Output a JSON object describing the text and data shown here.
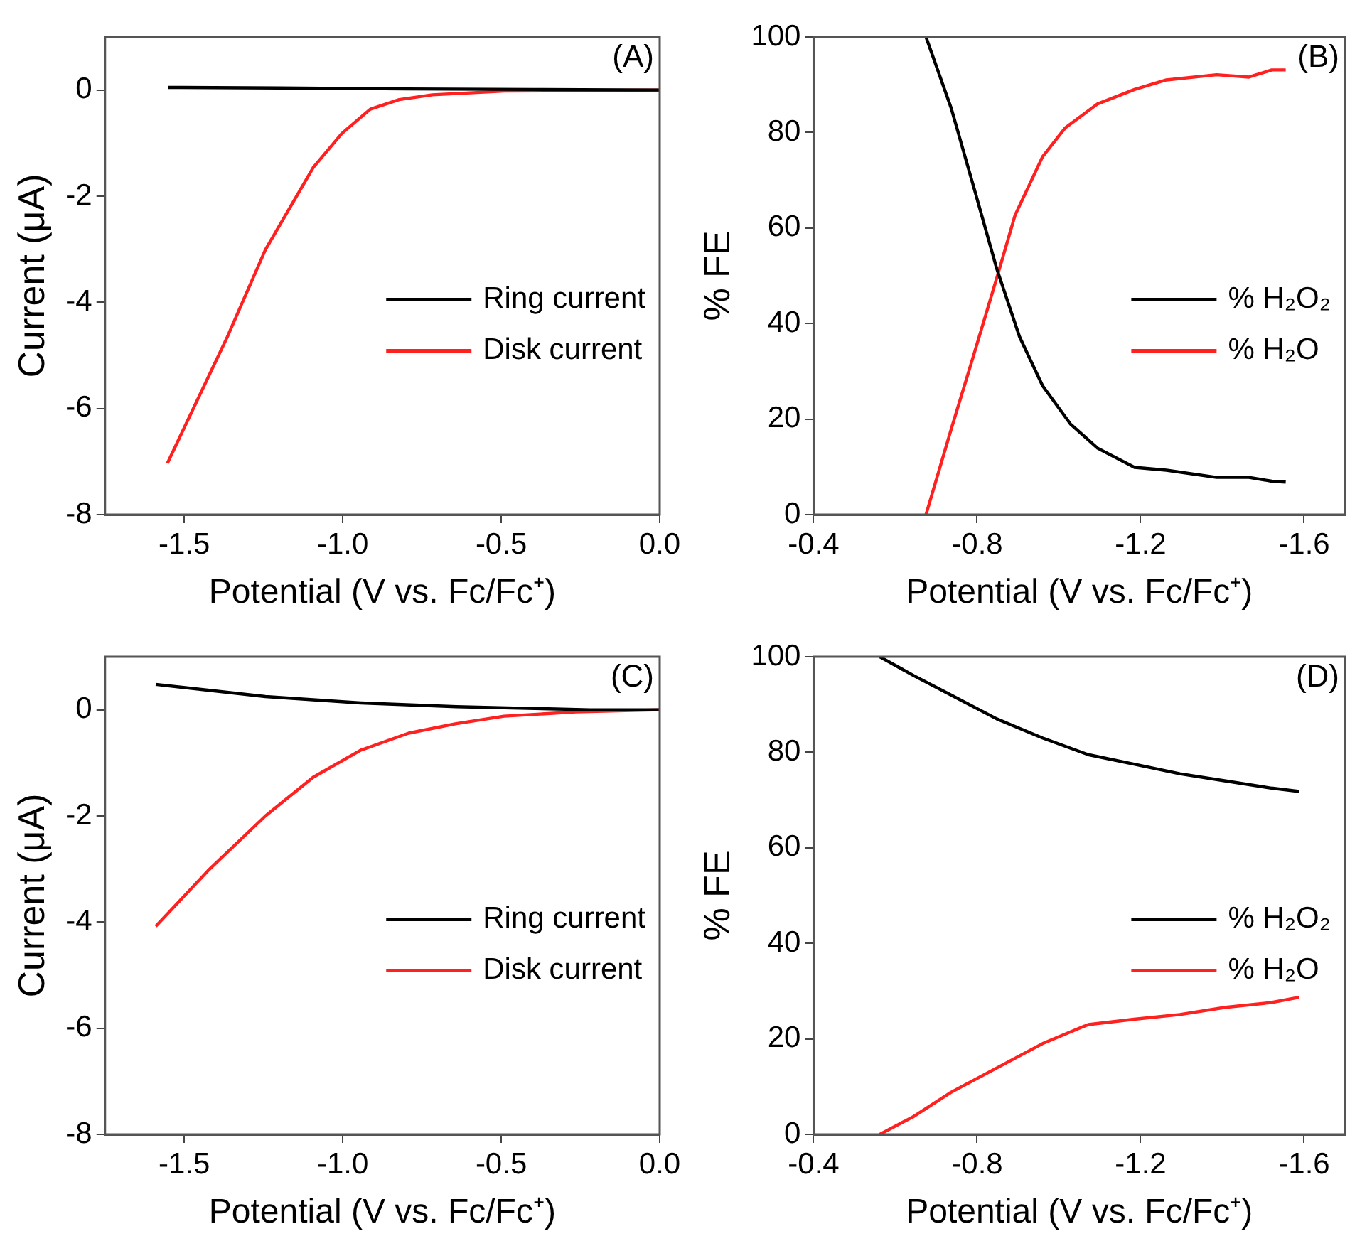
{
  "chart_data": [
    {
      "type": "line",
      "xlabel": "Potential (V vs. Fc/Fc⁺)",
      "ylabel": "Current (μA)",
      "xlim": [
        -1.75,
        0
      ],
      "xticks": [
        {
          "value": -1.5,
          "label": "-1.5"
        },
        {
          "value": -1,
          "label": "-1.0"
        },
        {
          "value": -0.5,
          "label": "-0.5"
        },
        {
          "value": 0,
          "label": "0.0"
        }
      ],
      "ylim": [
        -8,
        1
      ],
      "yticks": [
        -8,
        -6,
        -4,
        -2,
        0
      ],
      "grid": false,
      "legend": "right",
      "marker": "none",
      "line_style": "solid",
      "annotations": [
        "(A)"
      ],
      "series": [
        {
          "name": "Ring current",
          "color": "#000000",
          "x": [
            -1.55,
            -1.2,
            -0.8,
            -0.4,
            0
          ],
          "values": [
            0.05,
            0.04,
            0.02,
            0.01,
            0
          ]
        },
        {
          "name": "Disk current",
          "color": "#ff2020",
          "x": [
            -1.553,
            -1.364,
            -1.244,
            -1.093,
            -1.003,
            -0.913,
            -0.822,
            -0.717,
            -0.49,
            0
          ],
          "values": [
            -7.03,
            -4.65,
            -3.01,
            -1.46,
            -0.82,
            -0.36,
            -0.18,
            -0.09,
            -0.02,
            0
          ]
        }
      ]
    },
    {
      "type": "line",
      "xlabel": "Potential (V vs. Fc/Fc⁺)",
      "ylabel": "% FE",
      "xlim": [
        -0.4,
        -1.7
      ],
      "xticks": [
        -0.4,
        -0.8,
        -1.2,
        -1.6
      ],
      "ylim": [
        0,
        100
      ],
      "yticks": [
        0,
        20,
        40,
        60,
        80,
        100
      ],
      "grid": false,
      "legend": "right",
      "marker": "none",
      "line_style": "solid",
      "annotations": [
        "(B)"
      ],
      "series": [
        {
          "name": "% H₂O₂",
          "color": "#000000",
          "x": [
            -0.675,
            -0.737,
            -0.791,
            -0.848,
            -0.904,
            -0.96,
            -1.028,
            -1.095,
            -1.185,
            -1.263,
            -1.386,
            -1.465,
            -1.521,
            -1.555
          ],
          "values": [
            100,
            85,
            68.8,
            51.5,
            37.2,
            27,
            19,
            13.9,
            9.9,
            9.3,
            7.8,
            7.8,
            7,
            6.8
          ]
        },
        {
          "name": "% H₂O",
          "color": "#ff2020",
          "x": [
            -0.675,
            -0.737,
            -0.791,
            -0.848,
            -0.893,
            -0.96,
            -1.016,
            -1.095,
            -1.185,
            -1.263,
            -1.386,
            -1.465,
            -1.521,
            -1.555
          ],
          "values": [
            0,
            18,
            33.2,
            49.5,
            62.7,
            74.9,
            81,
            86,
            89,
            91,
            92.1,
            91.6,
            93.1,
            93.1
          ]
        }
      ]
    },
    {
      "type": "line",
      "xlabel": "Potential (V vs. Fc/Fc⁺)",
      "ylabel": "Current (μA)",
      "xlim": [
        -1.75,
        0
      ],
      "xticks": [
        {
          "value": -1.5,
          "label": "-1.5"
        },
        {
          "value": -1,
          "label": "-1.0"
        },
        {
          "value": -0.5,
          "label": "-0.5"
        },
        {
          "value": 0,
          "label": "0.0"
        }
      ],
      "ylim": [
        -8,
        1
      ],
      "yticks": [
        -8,
        -6,
        -4,
        -2,
        0
      ],
      "grid": false,
      "legend": "right",
      "marker": "none",
      "line_style": "solid",
      "annotations": [
        "(C)"
      ],
      "series": [
        {
          "name": "Ring current",
          "color": "#000000",
          "x": [
            -1.59,
            -1.244,
            -0.943,
            -0.642,
            -0.22,
            0
          ],
          "values": [
            0.48,
            0.25,
            0.13,
            0.06,
            0,
            0
          ]
        },
        {
          "name": "Disk current",
          "color": "#ff2020",
          "x": [
            -1.59,
            -1.425,
            -1.244,
            -1.093,
            -0.943,
            -0.792,
            -0.642,
            -0.491,
            -0.265,
            0
          ],
          "values": [
            -4.08,
            -3.03,
            -2,
            -1.27,
            -0.76,
            -0.44,
            -0.26,
            -0.12,
            -0.04,
            0
          ]
        }
      ]
    },
    {
      "type": "line",
      "xlabel": "Potential (V vs. Fc/Fc⁺)",
      "ylabel": "% FE",
      "xlim": [
        -0.4,
        -1.7
      ],
      "xticks": [
        -0.4,
        -0.8,
        -1.2,
        -1.6
      ],
      "ylim": [
        0,
        100
      ],
      "yticks": [
        0,
        20,
        40,
        60,
        80,
        100
      ],
      "grid": false,
      "legend": "right",
      "marker": "none",
      "line_style": "solid",
      "annotations": [
        "(D)"
      ],
      "series": [
        {
          "name": "% H₂O₂",
          "color": "#000000",
          "x": [
            -0.562,
            -0.646,
            -0.736,
            -0.848,
            -0.96,
            -1.072,
            -1.184,
            -1.296,
            -1.408,
            -1.52,
            -1.588
          ],
          "values": [
            100,
            96,
            92,
            87,
            83,
            79.5,
            77.5,
            75.5,
            74,
            72.5,
            71.8
          ]
        },
        {
          "name": "% H₂O",
          "color": "#ff2020",
          "x": [
            -0.562,
            -0.646,
            -0.736,
            -0.848,
            -0.96,
            -1.072,
            -1.184,
            -1.296,
            -1.408,
            -1.52,
            -1.588
          ],
          "values": [
            0,
            3.8,
            8.8,
            13.9,
            19,
            23,
            24.1,
            25.1,
            26.6,
            27.6,
            28.7
          ]
        }
      ]
    }
  ]
}
